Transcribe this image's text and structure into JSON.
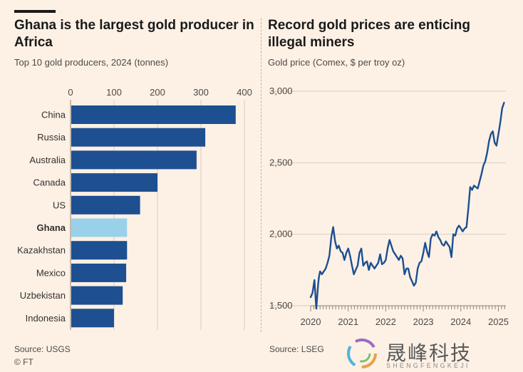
{
  "left_panel": {
    "title": "Ghana is the largest gold producer in Africa",
    "subtitle": "Top 10 gold producers, 2024 (tonnes)",
    "source": "Source: USGS",
    "credit": "© FT"
  },
  "right_panel": {
    "title": "Record gold prices are enticing illegal miners",
    "subtitle": "Gold price (Comex, $ per troy oz)",
    "source": "Source: LSEG"
  },
  "watermark": {
    "text": "晟峰科技",
    "sub": "SHENGFENGKEJI"
  },
  "colors": {
    "background": "#fdf1e5",
    "bar": "#1d4f91",
    "highlight": "#9ad1ea",
    "line": "#1d4f91",
    "grid": "#d6ccc2"
  },
  "chart_data": [
    {
      "type": "bar",
      "orientation": "horizontal",
      "title": "Ghana is the largest gold producer in Africa",
      "subtitle": "Top 10 gold producers, 2024 (tonnes)",
      "categories": [
        "China",
        "Russia",
        "Australia",
        "Canada",
        "US",
        "Ghana",
        "Kazakhstan",
        "Mexico",
        "Uzbekistan",
        "Indonesia"
      ],
      "values": [
        380,
        310,
        290,
        200,
        160,
        130,
        130,
        128,
        120,
        100
      ],
      "highlight": "Ghana",
      "xlim": [
        0,
        400
      ],
      "xticks": [
        "0",
        "100",
        "200",
        "300",
        "400"
      ],
      "grid": true
    },
    {
      "type": "line",
      "title": "Record gold prices are enticing illegal miners",
      "subtitle": "Gold price (Comex, $ per troy oz)",
      "xlim": [
        2020.0,
        2025.2
      ],
      "ylim": [
        1500,
        3000
      ],
      "yticks": [
        "1,500",
        "2,000",
        "2,500",
        "3,000"
      ],
      "xticks": [
        "2020",
        "2021",
        "2022",
        "2023",
        "2024",
        "2025"
      ],
      "series": [
        {
          "name": "Gold price",
          "x": [
            2020.0,
            2020.05,
            2020.1,
            2020.15,
            2020.2,
            2020.22,
            2020.25,
            2020.3,
            2020.35,
            2020.4,
            2020.45,
            2020.5,
            2020.55,
            2020.6,
            2020.65,
            2020.7,
            2020.75,
            2020.8,
            2020.85,
            2020.9,
            2020.95,
            2021.0,
            2021.05,
            2021.1,
            2021.15,
            2021.2,
            2021.25,
            2021.3,
            2021.35,
            2021.4,
            2021.45,
            2021.5,
            2021.55,
            2021.6,
            2021.65,
            2021.7,
            2021.75,
            2021.8,
            2021.85,
            2021.9,
            2021.95,
            2022.0,
            2022.05,
            2022.1,
            2022.15,
            2022.2,
            2022.25,
            2022.3,
            2022.35,
            2022.4,
            2022.45,
            2022.5,
            2022.55,
            2022.6,
            2022.65,
            2022.7,
            2022.75,
            2022.8,
            2022.85,
            2022.9,
            2022.95,
            2023.0,
            2023.05,
            2023.1,
            2023.15,
            2023.2,
            2023.25,
            2023.3,
            2023.35,
            2023.4,
            2023.45,
            2023.5,
            2023.55,
            2023.6,
            2023.65,
            2023.7,
            2023.75,
            2023.8,
            2023.85,
            2023.9,
            2023.95,
            2024.0,
            2024.05,
            2024.1,
            2024.15,
            2024.2,
            2024.25,
            2024.3,
            2024.35,
            2024.4,
            2024.45,
            2024.5,
            2024.55,
            2024.6,
            2024.65,
            2024.7,
            2024.75,
            2024.8,
            2024.85,
            2024.9,
            2024.95,
            2025.0,
            2025.05,
            2025.1,
            2025.15
          ],
          "values": [
            1560,
            1590,
            1680,
            1480,
            1650,
            1700,
            1740,
            1720,
            1740,
            1760,
            1800,
            1850,
            1980,
            2050,
            1950,
            1900,
            1920,
            1880,
            1870,
            1820,
            1870,
            1900,
            1850,
            1780,
            1720,
            1750,
            1780,
            1870,
            1900,
            1780,
            1800,
            1810,
            1750,
            1800,
            1780,
            1760,
            1780,
            1800,
            1860,
            1790,
            1800,
            1820,
            1900,
            1960,
            1920,
            1880,
            1860,
            1840,
            1820,
            1850,
            1830,
            1720,
            1760,
            1760,
            1700,
            1670,
            1640,
            1660,
            1760,
            1800,
            1810,
            1870,
            1940,
            1880,
            1840,
            1970,
            2000,
            1990,
            2020,
            1980,
            1960,
            1930,
            1920,
            1950,
            1930,
            1910,
            1840,
            2000,
            1990,
            2040,
            2060,
            2040,
            2020,
            2040,
            2050,
            2180,
            2330,
            2310,
            2340,
            2330,
            2320,
            2370,
            2420,
            2480,
            2510,
            2570,
            2650,
            2700,
            2720,
            2640,
            2620,
            2700,
            2780,
            2880,
            2920
          ]
        }
      ]
    }
  ]
}
